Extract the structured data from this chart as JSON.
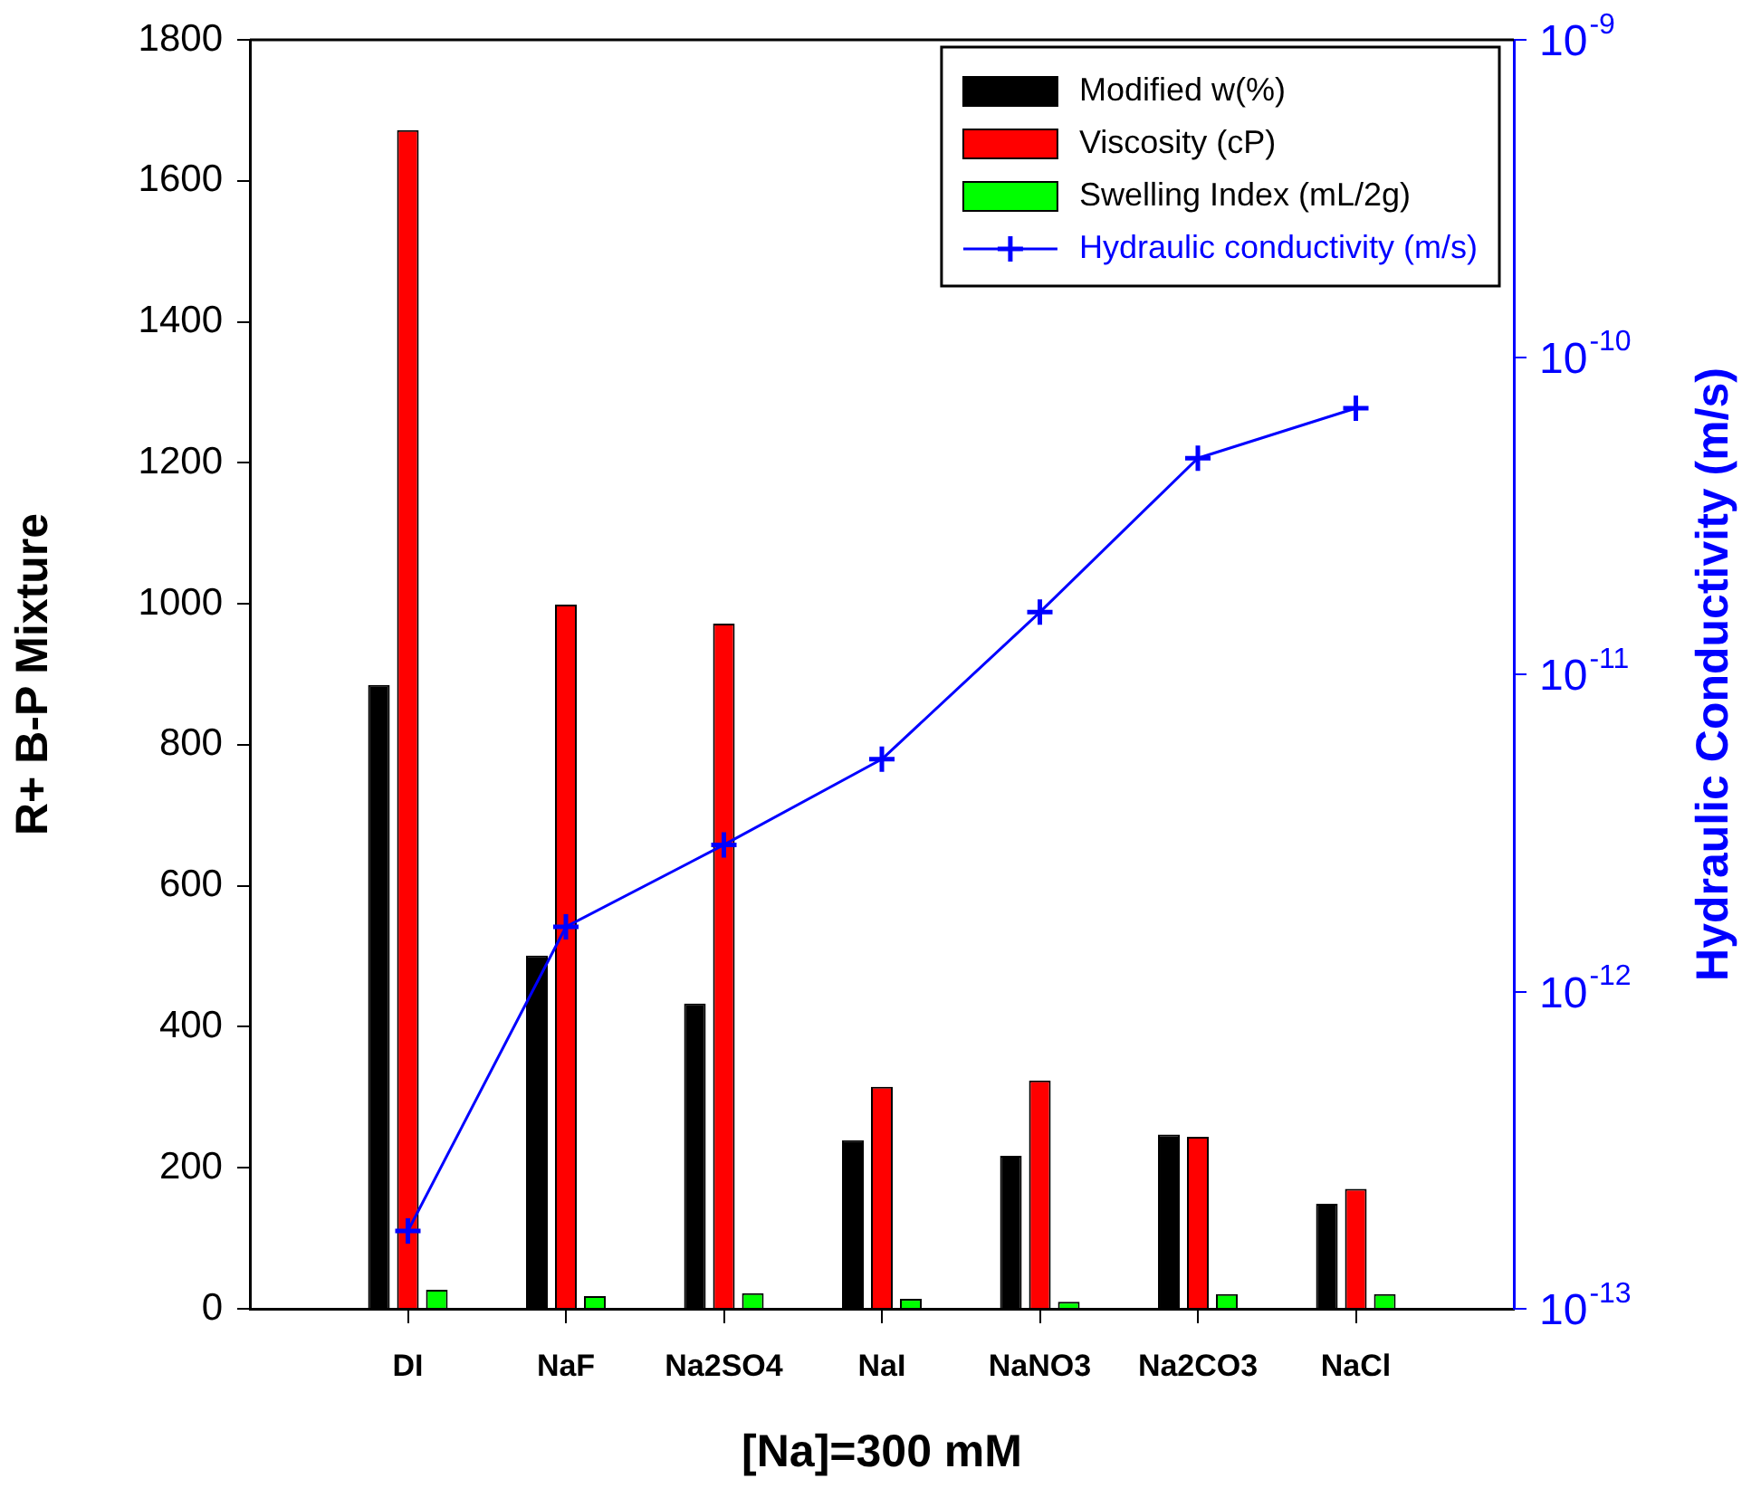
{
  "chart_data": {
    "type": "bar",
    "xlabel": "[Na]=300 mM",
    "ylabel": "R+ B-P Mixture",
    "y2label": "Hydraulic Conductivity (m/s)",
    "categories": [
      "DI",
      "NaF",
      "Na2SO4",
      "NaI",
      "NaNO3",
      "Na2CO3",
      "NaCl"
    ],
    "series": [
      {
        "name": "Modified w(%)",
        "color": "#000000",
        "values": [
          885,
          501,
          433,
          239,
          217,
          247,
          149
        ]
      },
      {
        "name": "Viscosity (cP)",
        "color": "#ff0000",
        "values": [
          1672,
          999,
          972,
          315,
          324,
          244,
          170
        ]
      },
      {
        "name": "Swelling Index (mL/2g)",
        "color": "#00ff00",
        "values": [
          27,
          18,
          22,
          14,
          10,
          21,
          21
        ]
      },
      {
        "name": "Hydraulic conductivity (m/s)",
        "color": "#0000ff",
        "type": "line",
        "axis": "y2",
        "values": [
          1.76e-13,
          1.6e-12,
          2.9e-12,
          5.4e-12,
          1.57e-11,
          4.8e-11,
          6.9e-11
        ]
      }
    ],
    "ylim": [
      0,
      1800
    ],
    "yticks": [
      0,
      200,
      400,
      600,
      800,
      1000,
      1200,
      1400,
      1600,
      1800
    ],
    "y2lim": [
      1e-13,
      1e-09
    ],
    "y2ticks": [
      {
        "value": 1e-13,
        "label": "10$^{-13}$"
      },
      {
        "value": 1e-12,
        "label": "10$^{-12}$"
      },
      {
        "value": 1e-11,
        "label": "10$^{-11}$"
      },
      {
        "value": 1e-10,
        "label": "10$^{-10}$"
      },
      {
        "value": 1e-09,
        "label": "10$^{-9}$"
      }
    ],
    "log": "y2",
    "legend": "top right",
    "marker": "cross",
    "line_style": "solid"
  }
}
